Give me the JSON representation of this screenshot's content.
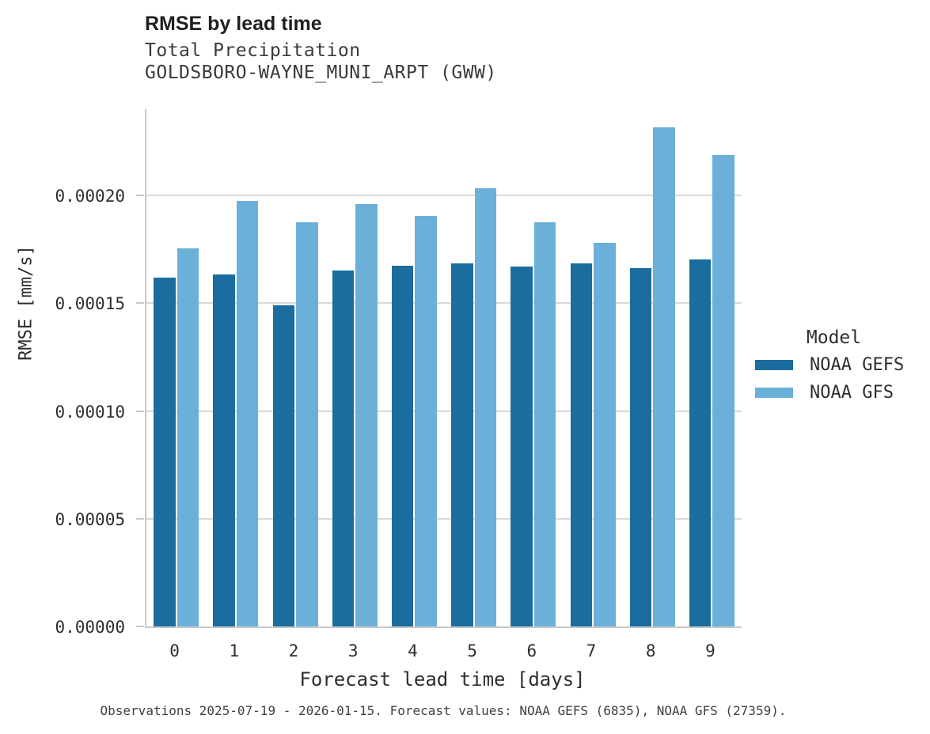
{
  "title": "RMSE by lead time",
  "subtitle_line1": "Total Precipitation",
  "subtitle_line2": "GOLDSBORO-WAYNE_MUNI_ARPT (GWW)",
  "caption": "Observations 2025-07-19 - 2026-01-15. Forecast values: NOAA GEFS (6835), NOAA GFS (27359).",
  "colors": {
    "gefs_dark_blue": "#1a6d9e",
    "gfs_light_blue": "#6bb0d8",
    "gridline_gray": "#d9d9d9",
    "axis_gray": "#c9c9c9"
  },
  "y_axis": {
    "label": "RMSE [mm/s]",
    "max": 0.00024,
    "ticks": [
      {
        "value": 0.0,
        "label": "0.00000"
      },
      {
        "value": 5e-05,
        "label": "0.00005"
      },
      {
        "value": 0.0001,
        "label": "0.00010"
      },
      {
        "value": 0.00015,
        "label": "0.00015"
      },
      {
        "value": 0.0002,
        "label": "0.00020"
      }
    ]
  },
  "x_axis": {
    "label": "Forecast lead time [days]"
  },
  "legend": {
    "title": "Model",
    "items": [
      {
        "label": "NOAA GEFS",
        "color": "#1a6d9e"
      },
      {
        "label": "NOAA GFS",
        "color": "#6bb0d8"
      }
    ]
  },
  "chart_data": {
    "type": "bar",
    "title": "RMSE by lead time",
    "subtitle": "Total Precipitation — GOLDSBORO-WAYNE_MUNI_ARPT (GWW)",
    "xlabel": "Forecast lead time [days]",
    "ylabel": "RMSE [mm/s]",
    "ylim": [
      0,
      0.00024
    ],
    "grid": true,
    "legend_position": "right",
    "legend_title": "Model",
    "categories": [
      "0",
      "1",
      "2",
      "3",
      "4",
      "5",
      "6",
      "7",
      "8",
      "9"
    ],
    "series": [
      {
        "name": "NOAA GEFS",
        "color": "#1a6d9e",
        "values": [
          0.000162,
          0.0001633,
          0.0001491,
          0.0001651,
          0.0001674,
          0.0001683,
          0.0001668,
          0.0001684,
          0.0001661,
          0.0001701
        ]
      },
      {
        "name": "NOAA GFS",
        "color": "#6bb0d8",
        "values": [
          0.0001753,
          0.0001974,
          0.0001875,
          0.0001958,
          0.0001905,
          0.0002034,
          0.0001877,
          0.0001781,
          0.0002315,
          0.0002188
        ]
      }
    ]
  }
}
